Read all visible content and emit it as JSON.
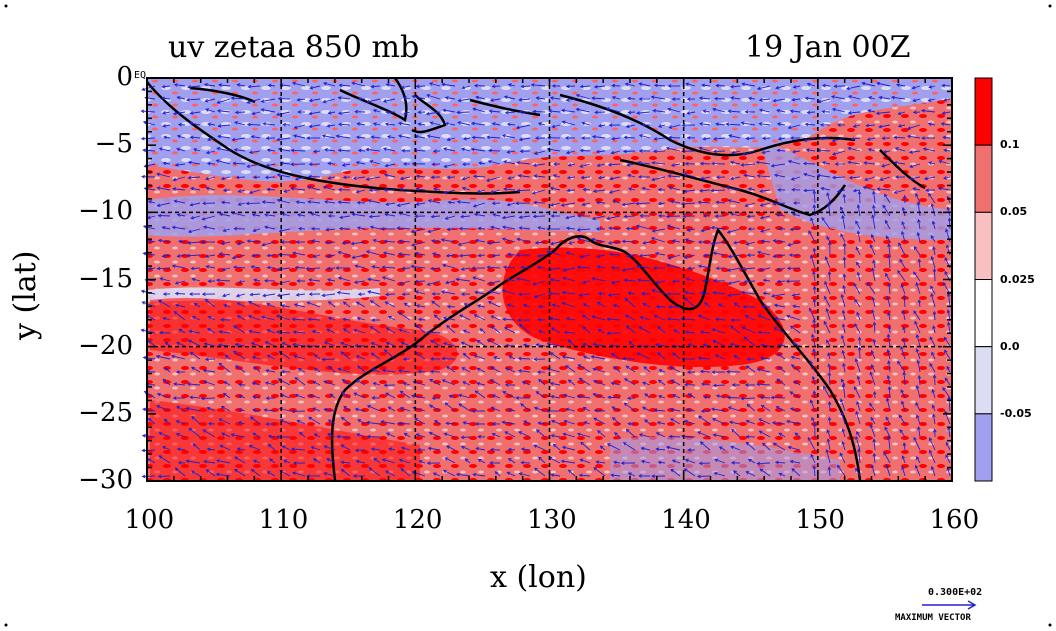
{
  "title": {
    "left": "uv zetaa 850 mb",
    "right": "19 Jan 00Z"
  },
  "axes": {
    "xlabel": "x (lon)",
    "ylabel": "y (lat)",
    "x_ticks": [
      "100",
      "110",
      "120",
      "130",
      "140",
      "150",
      "160"
    ],
    "y_ticks": [
      "0",
      "−5",
      "−10",
      "−15",
      "−20",
      "−25",
      "−30"
    ],
    "corner_label": "EQ",
    "x_range": [
      100,
      160
    ],
    "y_range": [
      -30,
      0
    ]
  },
  "legend": {
    "labels": [
      "0.1",
      "0.05",
      "0.025",
      "0.0",
      "-0.05"
    ],
    "colors": [
      "#ff0000",
      "#f07070",
      "#f8c0c0",
      "#ffffff",
      "#dcdcf5",
      "#a0a0ee"
    ]
  },
  "vector": {
    "value": "0.300E+02",
    "label": "MAXIMUM VECTOR"
  },
  "colors": {
    "positive_strong": "#ff0000",
    "positive_mid": "#f07070",
    "positive_light": "#f8c0c0",
    "negative_light": "#dcdcf5",
    "negative_strong": "#a0a0ee",
    "arrow": "#2020d0"
  },
  "grid_lines_lon": [
    110,
    120,
    130,
    140,
    150
  ],
  "grid_lines_lat": [
    -10,
    -20
  ]
}
